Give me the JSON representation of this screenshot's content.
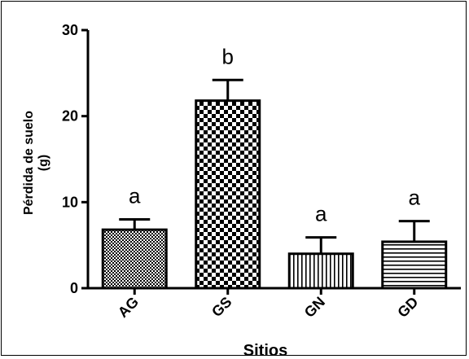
{
  "chart_data": {
    "type": "bar",
    "categories": [
      "AG",
      "GS",
      "GN",
      "GD"
    ],
    "values": [
      6.8,
      21.8,
      4.0,
      5.4
    ],
    "errors": [
      1.2,
      2.4,
      1.9,
      2.4
    ],
    "significance_letters": [
      "a",
      "b",
      "a",
      "a"
    ],
    "xlabel": "Sitios",
    "ylabel_line1": "Pérdida de suelo",
    "ylabel_line2": "(g)",
    "ylim": [
      0,
      30
    ],
    "yticks": [
      "0",
      "10",
      "20",
      "30"
    ],
    "grid": false,
    "patterns": [
      "fine-checker",
      "checker",
      "vertical-lines",
      "horizontal-lines"
    ]
  }
}
